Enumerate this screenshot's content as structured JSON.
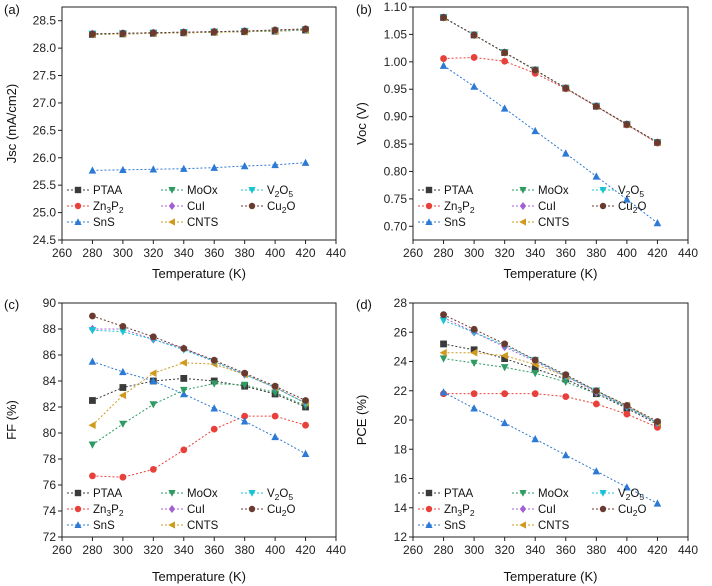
{
  "chart_data": [
    {
      "type": "line",
      "panel": "(a)",
      "title": "",
      "xlabel": "Temperature (K)",
      "ylabel": "Jsc (mA/cm2)",
      "xlim": [
        260,
        440
      ],
      "ylim": [
        24.5,
        28.75
      ],
      "xticks": [
        260,
        280,
        300,
        320,
        340,
        360,
        380,
        400,
        420,
        440
      ],
      "xtick_labels": [
        "260",
        "280",
        "300",
        "320",
        "340",
        "360",
        "380",
        "400",
        "420",
        "440"
      ],
      "yticks": [
        24.5,
        25.0,
        25.5,
        26.0,
        26.5,
        27.0,
        27.5,
        28.0,
        28.5
      ],
      "ytick_labels": [
        "24.5",
        "25.0",
        "25.5",
        "26.0",
        "26.5",
        "27.0",
        "27.5",
        "28.0",
        "28.5"
      ],
      "x": [
        280,
        300,
        320,
        340,
        360,
        380,
        400,
        420
      ],
      "series": [
        {
          "name": "PTAA",
          "values": [
            28.25,
            28.26,
            28.27,
            28.28,
            28.29,
            28.3,
            28.31,
            28.33
          ]
        },
        {
          "name": "Zn3P2",
          "values": [
            28.26,
            28.27,
            28.28,
            28.29,
            28.3,
            28.31,
            28.33,
            28.35
          ]
        },
        {
          "name": "SnS",
          "values": [
            25.77,
            25.78,
            25.79,
            25.8,
            25.82,
            25.85,
            25.87,
            25.91
          ]
        },
        {
          "name": "MoOx",
          "values": [
            28.25,
            28.26,
            28.27,
            28.28,
            28.29,
            28.3,
            28.31,
            28.33
          ]
        },
        {
          "name": "CuI",
          "values": [
            28.26,
            28.27,
            28.28,
            28.29,
            28.3,
            28.31,
            28.32,
            28.34
          ]
        },
        {
          "name": "CNTS",
          "values": [
            28.25,
            28.26,
            28.27,
            28.28,
            28.29,
            28.3,
            28.31,
            28.33
          ]
        },
        {
          "name": "V2O5",
          "values": [
            28.26,
            28.27,
            28.28,
            28.29,
            28.3,
            28.31,
            28.32,
            28.34
          ]
        },
        {
          "name": "Cu2O",
          "values": [
            28.26,
            28.27,
            28.28,
            28.29,
            28.3,
            28.31,
            28.33,
            28.35
          ]
        }
      ]
    },
    {
      "type": "line",
      "panel": "(b)",
      "title": "",
      "xlabel": "Temperature (K)",
      "ylabel": "Voc (V)",
      "xlim": [
        260,
        440
      ],
      "ylim": [
        0.675,
        1.1
      ],
      "xticks": [
        260,
        280,
        300,
        320,
        340,
        360,
        380,
        400,
        420,
        440
      ],
      "xtick_labels": [
        "260",
        "280",
        "300",
        "320",
        "340",
        "360",
        "380",
        "400",
        "420",
        "440"
      ],
      "yticks": [
        0.7,
        0.75,
        0.8,
        0.85,
        0.9,
        0.95,
        1.0,
        1.05,
        1.1
      ],
      "ytick_labels": [
        "0.70",
        "0.75",
        "0.80",
        "0.85",
        "0.90",
        "0.95",
        "1.00",
        "1.05",
        "1.10"
      ],
      "x": [
        280,
        300,
        320,
        340,
        360,
        380,
        400,
        420
      ],
      "series": [
        {
          "name": "PTAA",
          "values": [
            1.081,
            1.049,
            1.017,
            0.985,
            0.952,
            0.919,
            0.886,
            0.853
          ]
        },
        {
          "name": "Zn3P2",
          "values": [
            1.006,
            1.008,
            1.001,
            0.979,
            0.951,
            0.919,
            0.885,
            0.852
          ]
        },
        {
          "name": "SnS",
          "values": [
            0.993,
            0.955,
            0.915,
            0.874,
            0.833,
            0.791,
            0.749,
            0.706
          ]
        },
        {
          "name": "MoOx",
          "values": [
            1.081,
            1.049,
            1.017,
            0.985,
            0.952,
            0.919,
            0.886,
            0.853
          ]
        },
        {
          "name": "CuI",
          "values": [
            1.081,
            1.049,
            1.017,
            0.985,
            0.952,
            0.919,
            0.886,
            0.853
          ]
        },
        {
          "name": "CNTS",
          "values": [
            1.081,
            1.049,
            1.017,
            0.985,
            0.952,
            0.919,
            0.886,
            0.853
          ]
        },
        {
          "name": "V2O5",
          "values": [
            1.081,
            1.049,
            1.017,
            0.985,
            0.952,
            0.919,
            0.886,
            0.853
          ]
        },
        {
          "name": "Cu2O",
          "values": [
            1.081,
            1.049,
            1.017,
            0.985,
            0.952,
            0.919,
            0.886,
            0.853
          ]
        }
      ]
    },
    {
      "type": "line",
      "panel": "(c)",
      "title": "",
      "xlabel": "Temperature (K)",
      "ylabel": "FF (%)",
      "xlim": [
        260,
        440
      ],
      "ylim": [
        72,
        90
      ],
      "xticks": [
        260,
        280,
        300,
        320,
        340,
        360,
        380,
        400,
        420,
        440
      ],
      "xtick_labels": [
        "260",
        "280",
        "300",
        "320",
        "340",
        "360",
        "380",
        "400",
        "420",
        "440"
      ],
      "yticks": [
        72,
        74,
        76,
        78,
        80,
        82,
        84,
        86,
        88,
        90
      ],
      "ytick_labels": [
        "72",
        "74",
        "76",
        "78",
        "80",
        "82",
        "84",
        "86",
        "88",
        "90"
      ],
      "x": [
        280,
        300,
        320,
        340,
        360,
        380,
        400,
        420
      ],
      "series": [
        {
          "name": "PTAA",
          "values": [
            82.5,
            83.5,
            84.0,
            84.2,
            84.0,
            83.6,
            83.0,
            82.0
          ]
        },
        {
          "name": "Zn3P2",
          "values": [
            76.7,
            76.6,
            77.2,
            78.7,
            80.3,
            81.3,
            81.3,
            80.6
          ]
        },
        {
          "name": "SnS",
          "values": [
            85.5,
            84.7,
            84.0,
            83.0,
            81.9,
            80.9,
            79.7,
            78.4
          ]
        },
        {
          "name": "MoOx",
          "values": [
            79.1,
            80.7,
            82.2,
            83.3,
            83.8,
            83.7,
            83.1,
            82.1
          ]
        },
        {
          "name": "CuI",
          "values": [
            88.0,
            88.0,
            87.2,
            86.5,
            85.5,
            84.5,
            83.5,
            82.3
          ]
        },
        {
          "name": "CNTS",
          "values": [
            80.6,
            82.9,
            84.6,
            85.4,
            85.3,
            84.5,
            83.5,
            82.3
          ]
        },
        {
          "name": "V2O5",
          "values": [
            87.9,
            87.8,
            87.2,
            86.4,
            85.5,
            84.5,
            83.5,
            82.3
          ]
        },
        {
          "name": "Cu2O",
          "values": [
            89.0,
            88.2,
            87.4,
            86.5,
            85.6,
            84.6,
            83.6,
            82.5
          ]
        }
      ]
    },
    {
      "type": "line",
      "panel": "(d)",
      "title": "",
      "xlabel": "Temperature (K)",
      "ylabel": "PCE (%)",
      "xlim": [
        260,
        440
      ],
      "ylim": [
        12,
        28
      ],
      "xticks": [
        260,
        280,
        300,
        320,
        340,
        360,
        380,
        400,
        420,
        440
      ],
      "xtick_labels": [
        "260",
        "280",
        "300",
        "320",
        "340",
        "360",
        "380",
        "400",
        "420",
        "440"
      ],
      "yticks": [
        12,
        14,
        16,
        18,
        20,
        22,
        24,
        26,
        28
      ],
      "ytick_labels": [
        "12",
        "14",
        "16",
        "18",
        "20",
        "22",
        "24",
        "26",
        "28"
      ],
      "x": [
        280,
        300,
        320,
        340,
        360,
        380,
        400,
        420
      ],
      "series": [
        {
          "name": "PTAA",
          "values": [
            25.2,
            24.8,
            24.2,
            23.5,
            22.8,
            21.8,
            20.8,
            19.7
          ]
        },
        {
          "name": "Zn3P2",
          "values": [
            21.8,
            21.8,
            21.8,
            21.8,
            21.6,
            21.1,
            20.4,
            19.5
          ]
        },
        {
          "name": "SnS",
          "values": [
            21.9,
            20.8,
            19.8,
            18.7,
            17.6,
            16.5,
            15.4,
            14.3
          ]
        },
        {
          "name": "MoOx",
          "values": [
            24.2,
            23.9,
            23.6,
            23.2,
            22.6,
            21.8,
            20.9,
            19.8
          ]
        },
        {
          "name": "CuI",
          "values": [
            27.0,
            26.0,
            25.0,
            24.0,
            23.0,
            21.9,
            20.9,
            19.8
          ]
        },
        {
          "name": "CNTS",
          "values": [
            24.6,
            24.6,
            24.4,
            23.8,
            23.0,
            22.0,
            21.0,
            19.8
          ]
        },
        {
          "name": "V2O5",
          "values": [
            26.8,
            26.0,
            25.1,
            24.1,
            23.0,
            22.0,
            20.9,
            19.8
          ]
        },
        {
          "name": "Cu2O",
          "values": [
            27.2,
            26.2,
            25.2,
            24.1,
            23.1,
            22.0,
            21.0,
            19.9
          ]
        }
      ]
    }
  ],
  "legend": [
    {
      "name": "PTAA",
      "label_main": "PTAA",
      "label_sub1": "",
      "label_mid": "",
      "label_sub2": "",
      "color": "#3a3a3a",
      "marker": "square"
    },
    {
      "name": "MoOx",
      "label_main": "MoOx",
      "label_sub1": "",
      "label_mid": "",
      "label_sub2": "",
      "color": "#2e9b62",
      "marker": "triangle-down"
    },
    {
      "name": "V2O5",
      "label_main": "V",
      "label_sub1": "2",
      "label_mid": "O",
      "label_sub2": "5",
      "color": "#19c4d2",
      "marker": "triangle-down"
    },
    {
      "name": "Zn3P2",
      "label_main": "Zn",
      "label_sub1": "3",
      "label_mid": "P",
      "label_sub2": "2",
      "color": "#e8403a",
      "marker": "circle"
    },
    {
      "name": "CuI",
      "label_main": "CuI",
      "label_sub1": "",
      "label_mid": "",
      "label_sub2": "",
      "color": "#a35fd6",
      "marker": "diamond"
    },
    {
      "name": "Cu2O",
      "label_main": "Cu",
      "label_sub1": "2",
      "label_mid": "O",
      "label_sub2": "",
      "color": "#6b3a2e",
      "marker": "circle"
    },
    {
      "name": "SnS",
      "label_main": "SnS",
      "label_sub1": "",
      "label_mid": "",
      "label_sub2": "",
      "color": "#2c79d6",
      "marker": "triangle-up"
    },
    {
      "name": "CNTS",
      "label_main": "CNTS",
      "label_sub1": "",
      "label_mid": "",
      "label_sub2": "",
      "color": "#cf9a1e",
      "marker": "triangle-left"
    }
  ]
}
